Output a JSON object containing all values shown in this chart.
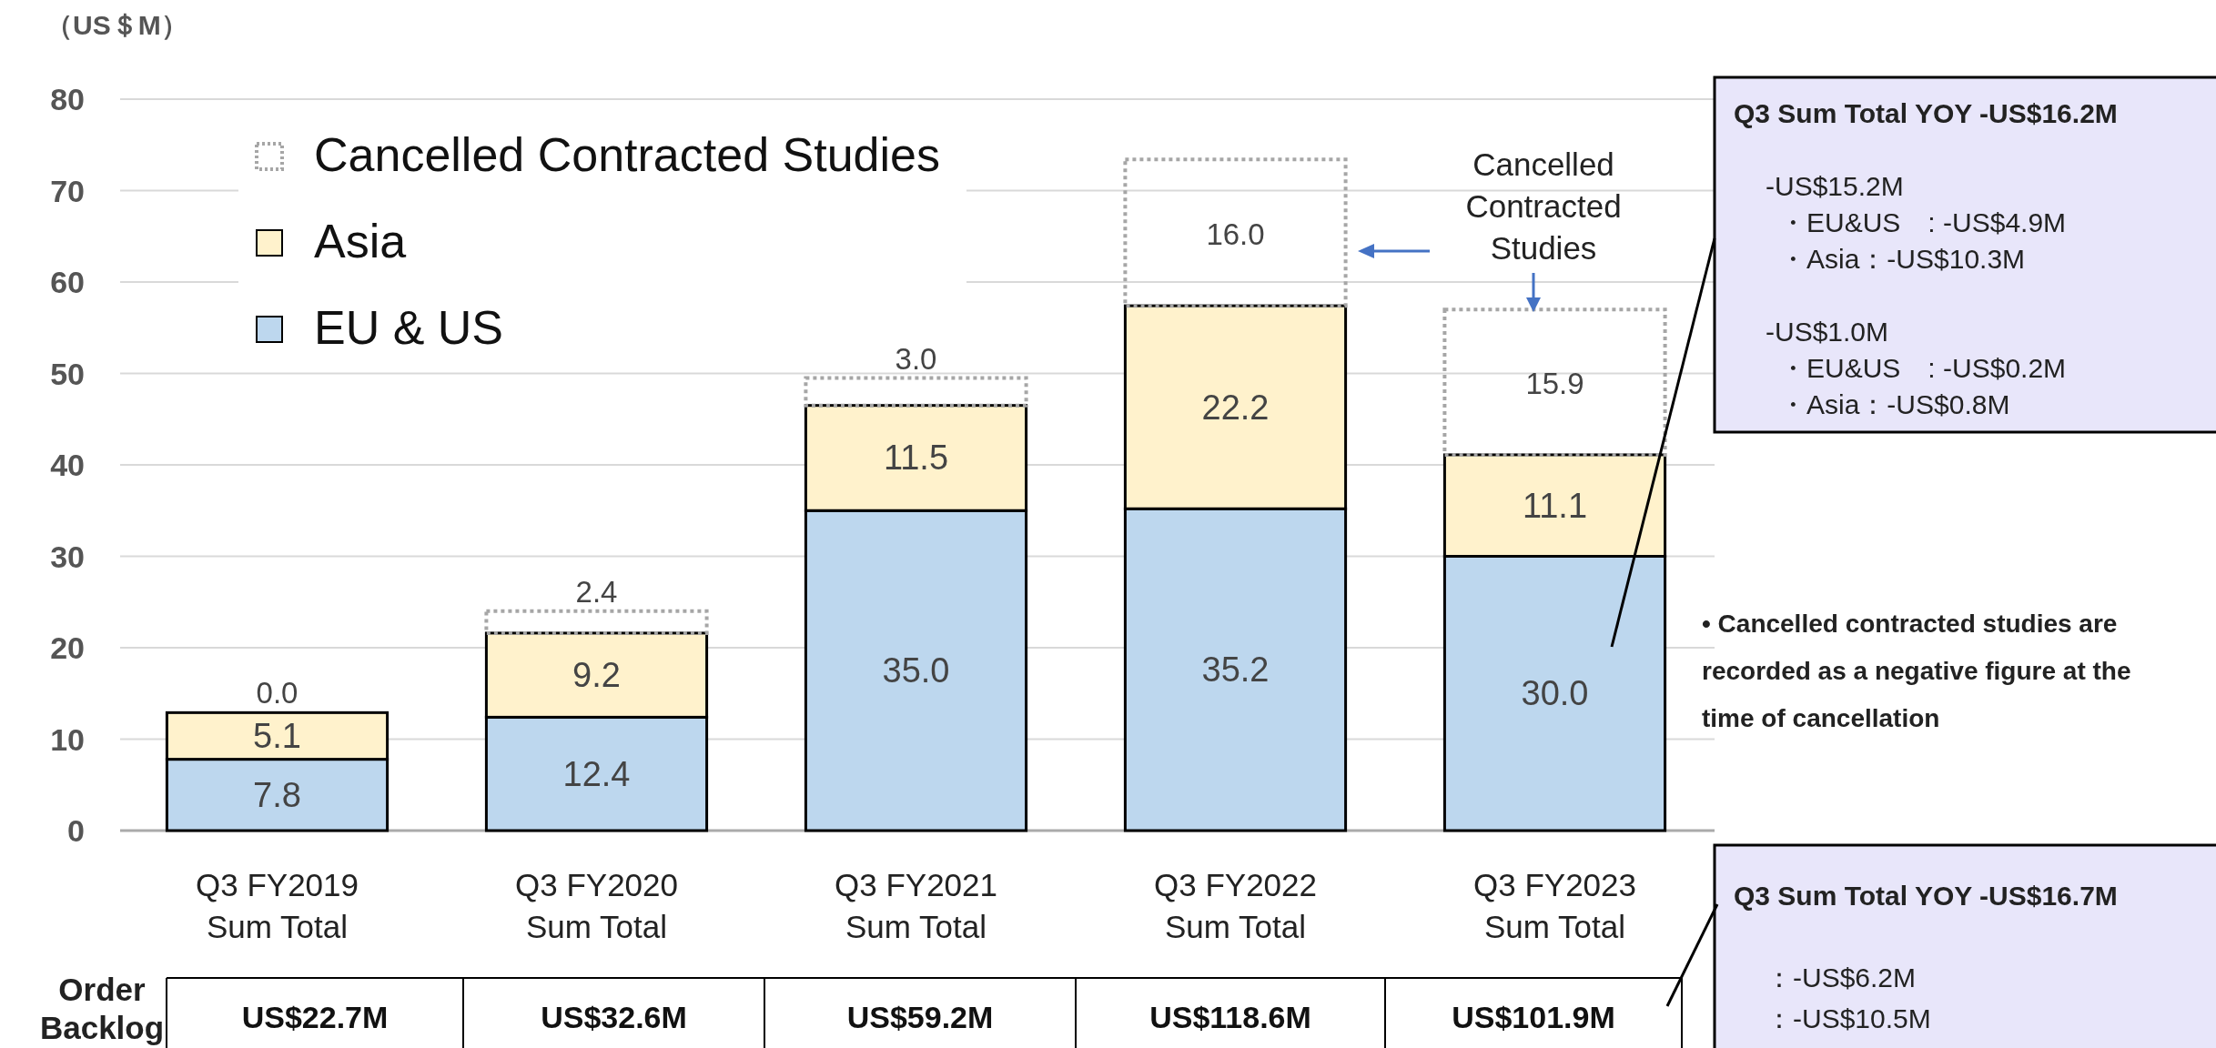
{
  "chart_data": {
    "type": "bar",
    "stacked": true,
    "ylabel": "（US＄M）",
    "categories": [
      "Q3 FY2019\nSum Total",
      "Q3 FY2020\nSum Total",
      "Q3 FY2021\nSum Total",
      "Q3 FY2022\nSum Total",
      "Q3 FY2023\nSum Total"
    ],
    "series": [
      {
        "name": "EU & US",
        "color": "#bdd7ee",
        "values": [
          7.8,
          12.4,
          35.0,
          35.2,
          30.0
        ],
        "value_labels": [
          "7.8",
          "12.4",
          "35.0",
          "35.2",
          "30.0"
        ]
      },
      {
        "name": "Asia",
        "color": "#fff2cc",
        "values": [
          5.1,
          9.2,
          11.5,
          22.2,
          11.1
        ],
        "value_labels": [
          "5.1",
          "9.2",
          "11.5",
          "22.2",
          "11.1"
        ]
      },
      {
        "name": "Cancelled Contracted Studies",
        "color": "#a6a6a6",
        "line_style": "dotted",
        "values": [
          0.0,
          2.4,
          3.0,
          16.0,
          15.9
        ],
        "value_labels": [
          "0.0",
          "2.4",
          "3.0",
          "16.0",
          "15.9"
        ]
      }
    ],
    "ylim": [
      0,
      80
    ],
    "yticks": [
      0,
      10,
      20,
      30,
      40,
      50,
      60,
      70,
      80
    ],
    "grid": "y",
    "legend": "top left",
    "annotations": [
      "Cancelled\nContracted\nStudies",
      "Q3 Sum Total YOY -US$16.2M\n\n-US$15.2M\n・EU&US　: -US$4.9M\n・Asia：-US$10.3M\n\n-US$1.0M\n・EU&US　: -US$0.2M\n・Asia：-US$0.8M",
      "•  Cancelled contracted studies are\nrecorded as a negative figure at the\ntime of cancellation",
      "Q3 Sum Total YOY -US$16.7M\n\n：-US$6.2M\n：-US$10.5M",
      "Order\nBacklog",
      "US$22.7M",
      "US$32.6M",
      "US$59.2M",
      "US$118.6M",
      "US$101.9M"
    ]
  }
}
